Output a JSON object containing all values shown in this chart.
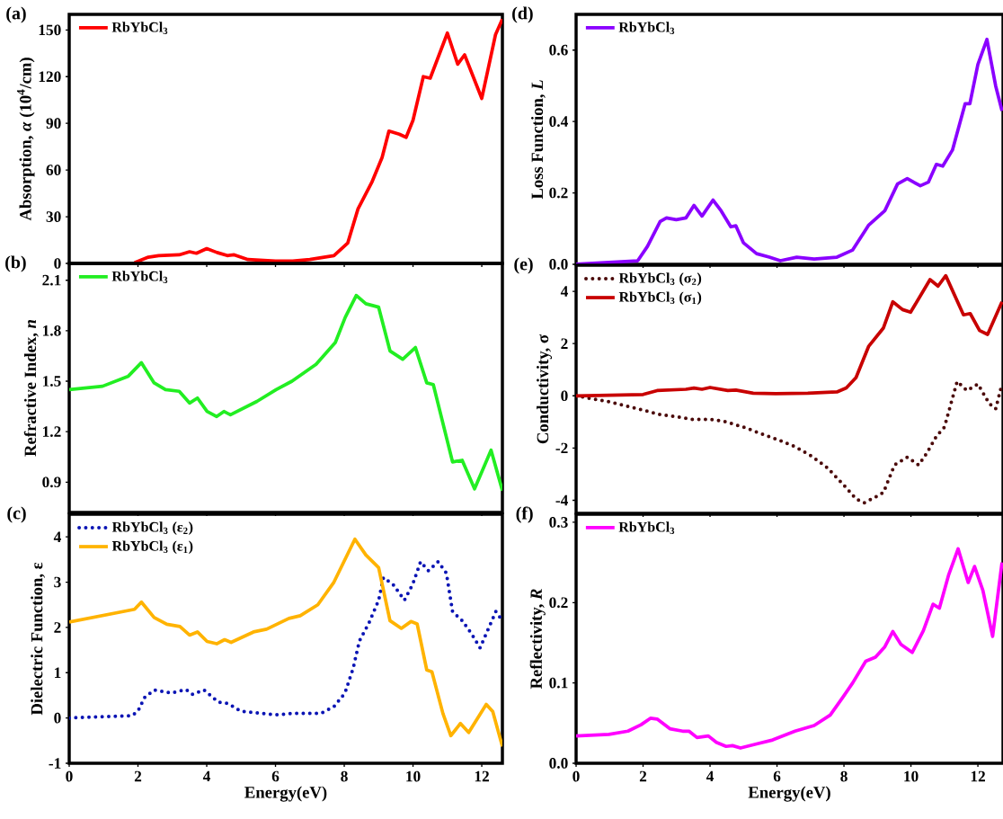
{
  "chart_data": [
    {
      "type": "line",
      "title": "(a)",
      "ylabel": "Absorption,  *α* (10$^{4}$/cm)",
      "xlim": [
        0,
        12.6
      ],
      "ylim": [
        0,
        160
      ],
      "xticks": [
        0,
        2,
        4,
        6,
        8,
        10,
        12
      ],
      "yticks": [
        0,
        30,
        60,
        90,
        120,
        150
      ],
      "tick_labels": "y",
      "legend": "top left",
      "line_style": "solid",
      "marker": "none",
      "series": [
        {
          "name": "RbYbCl$_{3}$",
          "color": "#ff0000",
          "x": [
            1.9,
            2.3,
            2.6,
            3.2,
            3.5,
            3.7,
            4.0,
            4.3,
            4.6,
            4.8,
            5.2,
            6.0,
            6.5,
            7.0,
            7.7,
            8.1,
            8.4,
            8.8,
            9.1,
            9.3,
            9.6,
            9.8,
            10.0,
            10.3,
            10.5,
            11.0,
            11.3,
            11.5,
            12.0,
            12.4,
            12.6
          ],
          "values": [
            0.5,
            4,
            5,
            5.5,
            7.5,
            6.5,
            9.5,
            7,
            5,
            5.5,
            2.5,
            1.5,
            1.5,
            2.5,
            5,
            13,
            35,
            52,
            68,
            85,
            83,
            81,
            92,
            120,
            119,
            148,
            128,
            134,
            106,
            147,
            157
          ]
        }
      ]
    },
    {
      "type": "line",
      "title": "(b)",
      "ylabel": "Refractive Index, *n*",
      "xlim": [
        0,
        12.6
      ],
      "ylim": [
        0.72,
        2.2
      ],
      "xticks": [
        0,
        2,
        4,
        6,
        8,
        10,
        12
      ],
      "yticks": [
        0.9,
        1.2,
        1.5,
        1.8,
        2.1
      ],
      "tick_labels": "y",
      "legend": "top left",
      "line_style": "solid",
      "marker": "none",
      "series": [
        {
          "name": "RbYbCl$_{3}$",
          "color": "#22ee22",
          "x": [
            0,
            0.97,
            1.72,
            2.1,
            2.47,
            2.8,
            3.2,
            3.5,
            3.73,
            4.01,
            4.29,
            4.5,
            4.69,
            5.46,
            6.02,
            6.48,
            7.18,
            7.74,
            8.03,
            8.35,
            8.63,
            9.0,
            9.33,
            9.7,
            10.07,
            10.4,
            10.59,
            11.15,
            11.43,
            11.79,
            12.27,
            12.6
          ],
          "values": [
            1.45,
            1.47,
            1.53,
            1.61,
            1.49,
            1.45,
            1.44,
            1.37,
            1.4,
            1.32,
            1.29,
            1.32,
            1.3,
            1.38,
            1.45,
            1.5,
            1.6,
            1.73,
            1.88,
            2.01,
            1.96,
            1.94,
            1.68,
            1.63,
            1.7,
            1.49,
            1.48,
            1.02,
            1.03,
            0.86,
            1.09,
            0.85
          ]
        }
      ]
    },
    {
      "type": "line",
      "title": "(c)",
      "xlabel": "Energy(eV)",
      "ylabel": "Dielectric Function, ε",
      "xlim": [
        0,
        12.6
      ],
      "ylim": [
        -1,
        4.5
      ],
      "xticks": [
        0,
        2,
        4,
        6,
        8,
        10,
        12
      ],
      "yticks": [
        -1,
        0,
        1,
        2,
        3,
        4
      ],
      "legend": "top left",
      "marker": "none",
      "series": [
        {
          "name": "RbYbCl$_{3}$ (ε$_{2}$)",
          "color": "#0a14b4",
          "line_style": "dotted",
          "x": [
            0,
            1.82,
            2.0,
            2.19,
            2.47,
            2.98,
            3.4,
            3.59,
            3.92,
            4.34,
            4.62,
            4.99,
            6.02,
            6.48,
            7.32,
            7.7,
            8.02,
            8.26,
            8.44,
            8.72,
            9.0,
            9.14,
            9.42,
            9.75,
            9.99,
            10.22,
            10.45,
            10.73,
            10.97,
            11.15,
            11.43,
            11.71,
            11.95,
            12.41,
            12.6
          ],
          "values": [
            0,
            0.05,
            0.15,
            0.45,
            0.62,
            0.55,
            0.63,
            0.52,
            0.62,
            0.35,
            0.32,
            0.15,
            0.07,
            0.1,
            0.1,
            0.25,
            0.55,
            1.1,
            1.7,
            2.1,
            2.6,
            3.1,
            2.95,
            2.6,
            2.95,
            3.45,
            3.25,
            3.45,
            3.2,
            2.35,
            2.15,
            1.85,
            1.55,
            2.35,
            2.15
          ]
        },
        {
          "name": "RbYbCl$_{3}$ (ε$_{1}$)",
          "color": "#ffb300",
          "line_style": "solid",
          "x": [
            0,
            1.9,
            2.1,
            2.47,
            2.84,
            3.22,
            3.5,
            3.73,
            4.01,
            4.29,
            4.52,
            4.71,
            5.36,
            5.74,
            6.39,
            6.72,
            7.23,
            7.7,
            8.31,
            8.63,
            9.0,
            9.33,
            9.66,
            9.94,
            10.12,
            10.4,
            10.55,
            10.87,
            11.1,
            11.38,
            11.62,
            12.13,
            12.32,
            12.6
          ],
          "values": [
            2.12,
            2.4,
            2.56,
            2.22,
            2.07,
            2.02,
            1.83,
            1.9,
            1.69,
            1.64,
            1.73,
            1.67,
            1.9,
            1.96,
            2.2,
            2.26,
            2.5,
            3.0,
            3.95,
            3.6,
            3.32,
            2.15,
            1.98,
            2.13,
            2.08,
            1.06,
            1.02,
            0.1,
            -0.39,
            -0.12,
            -0.32,
            0.3,
            0.14,
            -0.63
          ]
        }
      ]
    },
    {
      "type": "line",
      "title": "(d)",
      "ylabel": "Loss Function, *L*",
      "xlim": [
        0,
        12.75
      ],
      "ylim": [
        0,
        0.7
      ],
      "xticks": [
        0,
        2,
        4,
        6,
        8,
        10,
        12
      ],
      "yticks": [
        {
          "value": 0,
          "label": "0.0"
        },
        0.2,
        0.4,
        0.6
      ],
      "tick_labels": "y",
      "legend": "top left",
      "line_style": "solid",
      "marker": "none",
      "series": [
        {
          "name": "RbYbCl$_{3}$",
          "color": "#8a00ff",
          "x": [
            0,
            1.84,
            2.13,
            2.51,
            2.7,
            2.99,
            3.28,
            3.52,
            3.76,
            4.09,
            4.33,
            4.62,
            4.77,
            5.0,
            5.39,
            5.77,
            6.1,
            6.59,
            7.11,
            7.79,
            8.26,
            8.74,
            9.22,
            9.6,
            9.89,
            10.28,
            10.52,
            10.76,
            10.95,
            11.24,
            11.62,
            11.76,
            12.0,
            12.27,
            12.53,
            12.72
          ],
          "values": [
            0,
            0.01,
            0.05,
            0.12,
            0.13,
            0.125,
            0.13,
            0.165,
            0.135,
            0.18,
            0.15,
            0.105,
            0.108,
            0.06,
            0.03,
            0.02,
            0.01,
            0.02,
            0.015,
            0.02,
            0.04,
            0.11,
            0.15,
            0.225,
            0.24,
            0.22,
            0.23,
            0.28,
            0.275,
            0.32,
            0.45,
            0.45,
            0.56,
            0.63,
            0.5,
            0.43
          ]
        }
      ]
    },
    {
      "type": "line",
      "title": "(e)",
      "ylabel": "Conductivity, σ",
      "xlim": [
        0,
        12.75
      ],
      "ylim": [
        -4.5,
        5
      ],
      "xticks": [
        0,
        2,
        4,
        6,
        8,
        10,
        12
      ],
      "yticks": [
        -4,
        -2,
        0,
        2,
        4
      ],
      "tick_labels": "y",
      "legend": "top left",
      "marker": "none",
      "series": [
        {
          "name": "RbYbCl$_{3}$ (σ$_{2}$)",
          "color": "#4b0a0a",
          "line_style": "dotted",
          "x": [
            0,
            1.07,
            2.0,
            2.51,
            2.99,
            3.47,
            4.0,
            4.43,
            5.0,
            5.53,
            6.06,
            6.54,
            7.02,
            7.5,
            7.98,
            8.36,
            8.6,
            8.98,
            9.18,
            9.51,
            9.89,
            10.23,
            10.47,
            10.76,
            11.0,
            11.38,
            11.67,
            12.0,
            12.34,
            12.53,
            12.72
          ],
          "values": [
            0,
            -0.25,
            -0.55,
            -0.72,
            -0.8,
            -0.9,
            -0.9,
            -0.98,
            -1.2,
            -1.45,
            -1.7,
            -1.95,
            -2.3,
            -2.75,
            -3.4,
            -3.95,
            -4.1,
            -3.85,
            -3.7,
            -2.65,
            -2.35,
            -2.65,
            -2.2,
            -1.55,
            -1.2,
            0.55,
            0.2,
            0.45,
            -0.3,
            -0.5,
            0.45
          ]
        },
        {
          "name": "RbYbCl$_{3}$ (σ$_{1}$)",
          "color": "#c80000",
          "line_style": "solid",
          "x": [
            0,
            2.0,
            2.42,
            3.28,
            3.52,
            3.76,
            4.0,
            4.53,
            4.77,
            5.29,
            5.96,
            6.92,
            7.79,
            8.07,
            8.36,
            8.74,
            9.18,
            9.46,
            9.75,
            9.99,
            10.57,
            10.81,
            11.04,
            11.57,
            11.77,
            12.05,
            12.29,
            12.72
          ],
          "values": [
            0,
            0.05,
            0.2,
            0.25,
            0.3,
            0.25,
            0.32,
            0.2,
            0.22,
            0.1,
            0.08,
            0.1,
            0.15,
            0.3,
            0.7,
            1.9,
            2.6,
            3.6,
            3.3,
            3.2,
            4.45,
            4.2,
            4.6,
            3.1,
            3.15,
            2.5,
            2.35,
            3.6
          ]
        }
      ]
    },
    {
      "type": "line",
      "title": "(f)",
      "xlabel": "Energy(eV)",
      "ylabel": "Reflectivity, *R*",
      "xlim": [
        0,
        12.75
      ],
      "ylim": [
        0,
        0.31
      ],
      "xticks": [
        0,
        2,
        4,
        6,
        8,
        10,
        12
      ],
      "yticks": [
        {
          "value": 0,
          "label": "0.0"
        },
        0.1,
        0.2,
        0.3
      ],
      "legend": "top left",
      "line_style": "solid",
      "marker": "none",
      "series": [
        {
          "name": "RbYbCl$_{3}$",
          "color": "#ff00ff",
          "x": [
            0,
            0.98,
            1.55,
            1.94,
            2.22,
            2.42,
            2.8,
            3.18,
            3.37,
            3.61,
            3.95,
            4.19,
            4.48,
            4.67,
            4.91,
            5.39,
            5.87,
            6.54,
            7.11,
            7.59,
            7.98,
            8.26,
            8.65,
            8.94,
            9.22,
            9.46,
            9.7,
            10.04,
            10.37,
            10.66,
            10.85,
            11.13,
            11.41,
            11.71,
            11.9,
            12.15,
            12.44,
            12.72
          ],
          "values": [
            0.034,
            0.036,
            0.04,
            0.048,
            0.056,
            0.055,
            0.043,
            0.04,
            0.04,
            0.032,
            0.034,
            0.026,
            0.021,
            0.022,
            0.019,
            0.024,
            0.029,
            0.04,
            0.047,
            0.06,
            0.083,
            0.1,
            0.127,
            0.132,
            0.145,
            0.164,
            0.148,
            0.138,
            0.165,
            0.198,
            0.193,
            0.235,
            0.267,
            0.225,
            0.245,
            0.215,
            0.158,
            0.25
          ]
        }
      ]
    }
  ]
}
